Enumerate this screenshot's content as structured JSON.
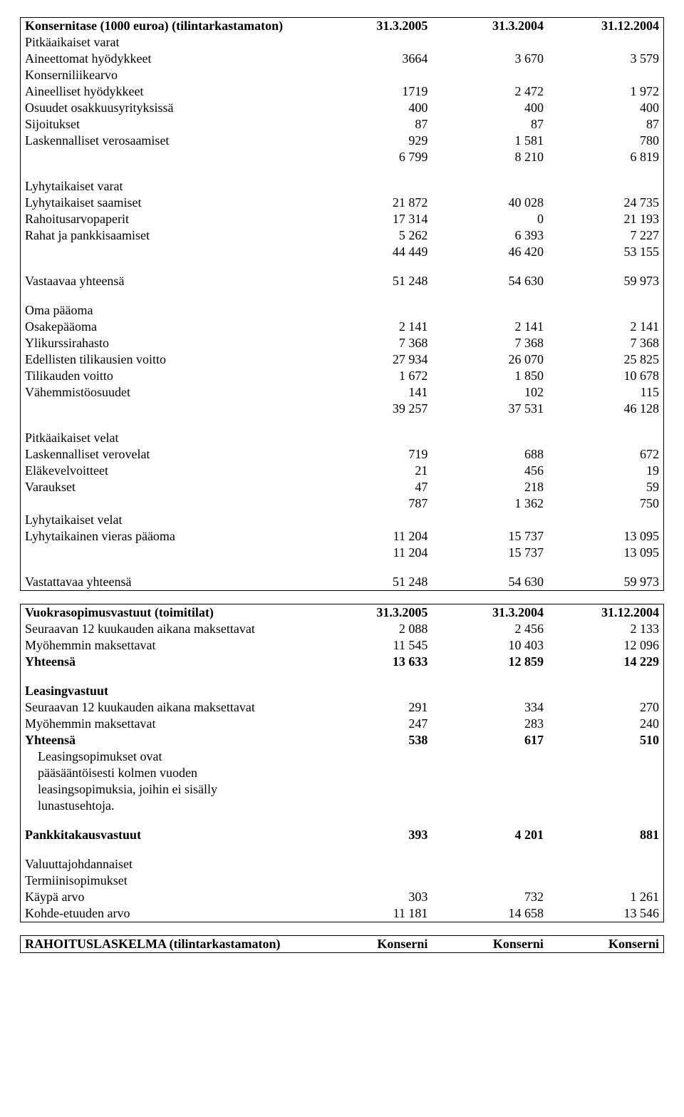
{
  "balance": {
    "header": {
      "title": "Konsernitase (1000 euroa) (tilintarkastamaton)",
      "c1": "31.3.2005",
      "c2": "31.3.2004",
      "c3": "31.12.2004"
    },
    "sections": [
      {
        "label": "Pitkäaikaiset varat"
      },
      {
        "label": "Aineettomat hyödykkeet",
        "c1": "3664",
        "c2": "3 670",
        "c3": "3 579"
      },
      {
        "label": "Konserniliikearvo"
      },
      {
        "label": "Aineelliset hyödykkeet",
        "c1": "1719",
        "c2": "2 472",
        "c3": "1 972"
      },
      {
        "label": "Osuudet osakkuusyrityksissä",
        "c1": "400",
        "c2": "400",
        "c3": "400"
      },
      {
        "label": "Sijoitukset",
        "c1": "87",
        "c2": "87",
        "c3": "87"
      },
      {
        "label": "Laskennalliset verosaamiset",
        "c1": "929",
        "c2": "1 581",
        "c3": "780"
      },
      {
        "label": "",
        "c1": "6 799",
        "c2": "8 210",
        "c3": "6 819"
      },
      {
        "gap": true
      },
      {
        "label": "Lyhytaikaiset varat"
      },
      {
        "label": "Lyhytaikaiset saamiset",
        "c1": "21 872",
        "c2": "40 028",
        "c3": "24 735"
      },
      {
        "label": "Rahoitusarvopaperit",
        "c1": "17 314",
        "c2": "0",
        "c3": "21 193"
      },
      {
        "label": "Rahat ja pankkisaamiset",
        "c1": "5 262",
        "c2": "6 393",
        "c3": "7 227"
      },
      {
        "label": "",
        "c1": "44 449",
        "c2": "46 420",
        "c3": "53 155"
      },
      {
        "gap": true
      },
      {
        "label": "Vastaavaa yhteensä",
        "c1": "51 248",
        "c2": "54 630",
        "c3": "59 973"
      },
      {
        "gap": true
      },
      {
        "label": "Oma pääoma"
      },
      {
        "label": "Osakepääoma",
        "c1": "2 141",
        "c2": "2 141",
        "c3": "2 141"
      },
      {
        "label": "Ylikurssirahasto",
        "c1": "7 368",
        "c2": "7 368",
        "c3": "7 368"
      },
      {
        "label": "Edellisten tilikausien voitto",
        "c1": "27 934",
        "c2": "26 070",
        "c3": "25 825"
      },
      {
        "label": "Tilikauden voitto",
        "c1": "1 672",
        "c2": "1 850",
        "c3": "10 678"
      },
      {
        "label": "Vähemmistöosuudet",
        "c1": "141",
        "c2": "102",
        "c3": "115"
      },
      {
        "label": "",
        "c1": "39 257",
        "c2": "37 531",
        "c3": "46 128"
      },
      {
        "gap": true
      },
      {
        "label": "Pitkäaikaiset velat"
      },
      {
        "label": "Laskennalliset verovelat",
        "c1": "719",
        "c2": "688",
        "c3": "672"
      },
      {
        "label": "Eläkevelvoitteet",
        "c1": "21",
        "c2": "456",
        "c3": "19"
      },
      {
        "label": "Varaukset",
        "c1": "47",
        "c2": "218",
        "c3": "59"
      },
      {
        "label": "",
        "c1": "787",
        "c2": "1 362",
        "c3": "750"
      },
      {
        "label": "Lyhytaikaiset velat"
      },
      {
        "label": "Lyhytaikainen vieras pääoma",
        "c1": "11 204",
        "c2": "15 737",
        "c3": "13 095"
      },
      {
        "label": "",
        "c1": "11 204",
        "c2": "15 737",
        "c3": "13 095"
      },
      {
        "gap": true
      },
      {
        "label": "Vastattavaa yhteensä",
        "c1": "51 248",
        "c2": "54 630",
        "c3": "59 973"
      }
    ]
  },
  "commit": {
    "header": {
      "title": "Vuokrasopimusvastuut (toimitilat)",
      "c1": "31.3.2005",
      "c2": "31.3.2004",
      "c3": "31.12.2004"
    },
    "rows": [
      {
        "label": "Seuraavan 12 kuukauden aikana maksettavat",
        "c1": "2 088",
        "c2": "2 456",
        "c3": "2 133"
      },
      {
        "label": "Myöhemmin maksettavat",
        "c1": "11 545",
        "c2": "10 403",
        "c3": "12 096"
      },
      {
        "label": "Yhteensä",
        "bold": true,
        "c1": "13 633",
        "c2": "12 859",
        "c3": "14 229"
      },
      {
        "gap": true
      },
      {
        "label": "Leasingvastuut",
        "bold": true
      },
      {
        "label": "Seuraavan 12 kuukauden aikana maksettavat",
        "c1": "291",
        "c2": "334",
        "c3": "270"
      },
      {
        "label": "Myöhemmin maksettavat",
        "c1": "247",
        "c2": "283",
        "c3": "240"
      },
      {
        "label": "Yhteensä",
        "bold": true,
        "c1": "538",
        "c2": "617",
        "c3": "510"
      },
      {
        "label": "Leasingsopimukset ovat",
        "indent": true
      },
      {
        "label": "pääsääntöisesti kolmen vuoden",
        "indent": true
      },
      {
        "label": "leasingsopimuksia, joihin ei sisälly",
        "indent": true
      },
      {
        "label": "lunastusehtoja.",
        "indent": true
      },
      {
        "gap": true
      },
      {
        "label": "Pankkitakausvastuut",
        "bold": true,
        "c1": "393",
        "c2": "4 201",
        "c3": "881"
      },
      {
        "gap": true
      },
      {
        "label": "Valuuttajohdannaiset"
      },
      {
        "label": "Termiinisopimukset"
      },
      {
        "label": "Käypä arvo",
        "c1": "303",
        "c2": "732",
        "c3": "1 261"
      },
      {
        "label": "Kohde-etuuden arvo",
        "c1": "11 181",
        "c2": "14 658",
        "c3": "13 546"
      }
    ]
  },
  "cashflow": {
    "title": "RAHOITUSLASKELMA (tilintarkastamaton)",
    "c1": "Konserni",
    "c2": "Konserni",
    "c3": "Konserni"
  }
}
